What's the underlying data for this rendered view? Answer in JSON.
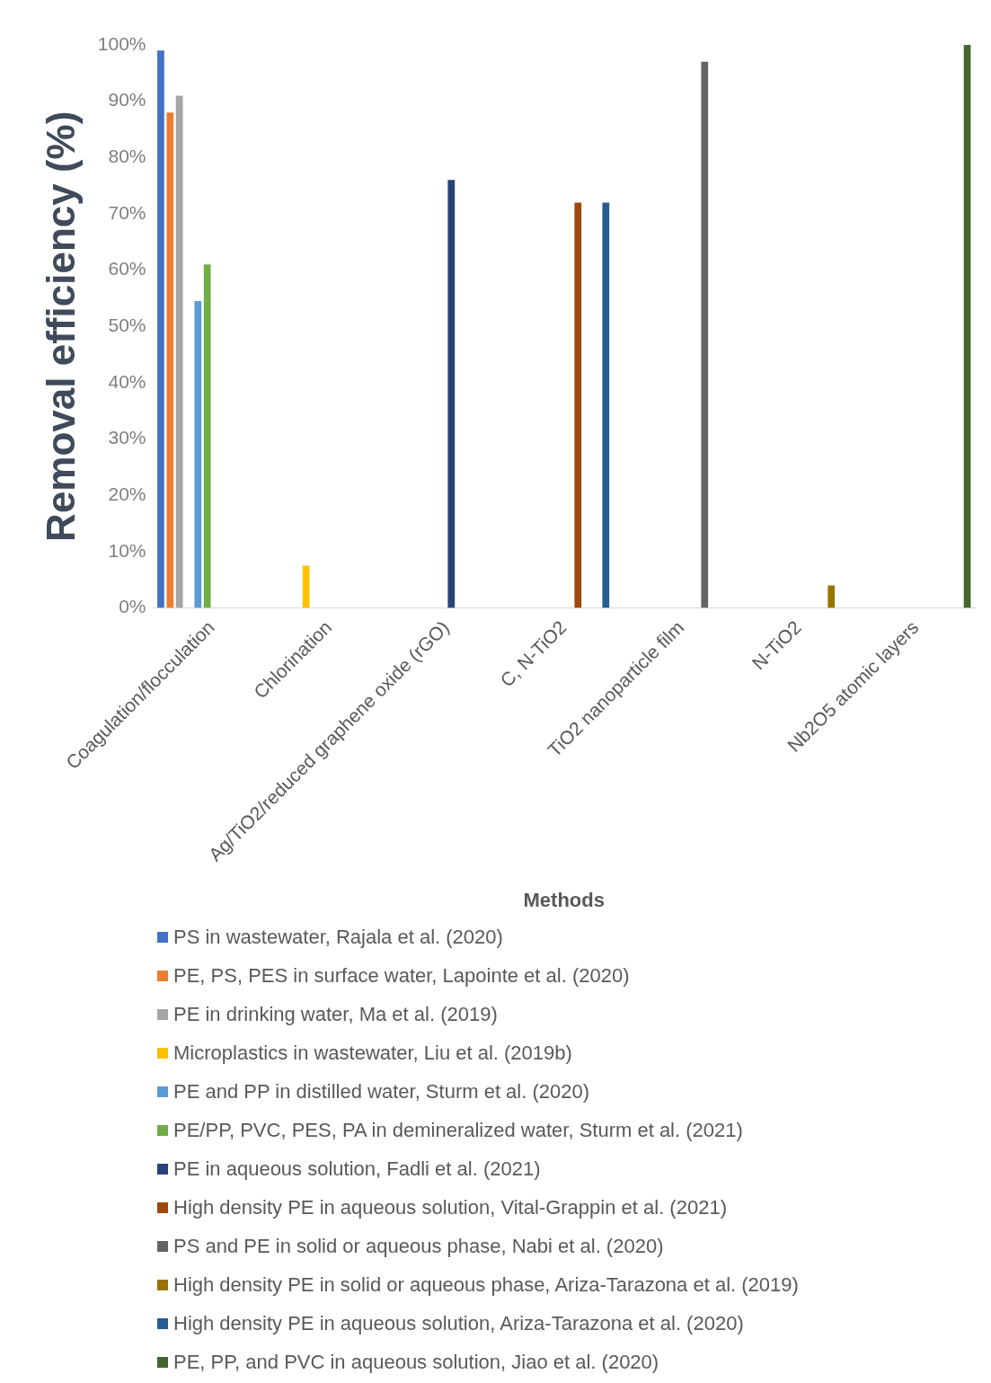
{
  "chart_data": {
    "type": "bar",
    "xlabel": "Methods",
    "ylabel": "Removal efficiency (%)",
    "categories": [
      "Coagulation/flocculation",
      "Chlorination",
      "Ag/TiO2/reduced graphene oxide (rGO)",
      "C, N-TiO2",
      "TiO2 nanoparticle film",
      "N-TiO2",
      "Nb2O5 atomic layers"
    ],
    "ylim": [
      0,
      100
    ],
    "yticks": [
      {
        "value": 0,
        "label": "0%"
      },
      {
        "value": 10,
        "label": "10%"
      },
      {
        "value": 20,
        "label": "20%"
      },
      {
        "value": 30,
        "label": "30%"
      },
      {
        "value": 40,
        "label": "40%"
      },
      {
        "value": 50,
        "label": "50%"
      },
      {
        "value": 60,
        "label": "60%"
      },
      {
        "value": 70,
        "label": "70%"
      },
      {
        "value": 80,
        "label": "80%"
      },
      {
        "value": 90,
        "label": "90%"
      },
      {
        "value": 100,
        "label": "100%"
      }
    ],
    "grid": false,
    "legend": "bottom",
    "series": [
      {
        "name": "PS in wastewater, Rajala et al. (2020)",
        "color": "#4472c4",
        "values": [
          99,
          null,
          null,
          null,
          null,
          null,
          null
        ]
      },
      {
        "name": "PE, PS, PES in surface water, Lapointe et al. (2020)",
        "color": "#ed7d31",
        "values": [
          88,
          null,
          null,
          null,
          null,
          null,
          null
        ]
      },
      {
        "name": "PE in drinking water, Ma et al. (2019)",
        "color": "#a5a5a5",
        "values": [
          91,
          null,
          null,
          null,
          null,
          null,
          null
        ]
      },
      {
        "name": "Microplastics in wastewater, Liu et al. (2019b)",
        "color": "#ffc000",
        "values": [
          null,
          7.5,
          null,
          null,
          null,
          null,
          null
        ]
      },
      {
        "name": "PE and PP in distilled water, Sturm et al. (2020)",
        "color": "#5b9bd5",
        "values": [
          54.5,
          null,
          null,
          null,
          null,
          null,
          null
        ]
      },
      {
        "name": "PE/PP, PVC, PES, PA in demineralized water, Sturm et al. (2021)",
        "color": "#70ad47",
        "values": [
          61,
          null,
          null,
          null,
          null,
          null,
          null
        ]
      },
      {
        "name": "PE in aqueous solution, Fadli et al. (2021)",
        "color": "#264478",
        "values": [
          null,
          null,
          76,
          null,
          null,
          null,
          null
        ]
      },
      {
        "name": "High density PE in aqueous solution, Vital-Grappin et al. (2021)",
        "color": "#9e480e",
        "values": [
          null,
          null,
          null,
          72,
          null,
          null,
          null
        ]
      },
      {
        "name": "PS and PE in solid or aqueous phase, Nabi et al. (2020)",
        "color": "#636363",
        "values": [
          null,
          null,
          null,
          null,
          97,
          null,
          null
        ]
      },
      {
        "name": "High density PE in solid or aqueous phase, Ariza-Tarazona et al. (2019)",
        "color": "#997300",
        "values": [
          null,
          null,
          null,
          null,
          null,
          4,
          null
        ]
      },
      {
        "name": "High density PE in aqueous solution, Ariza-Tarazona et al. (2020)",
        "color": "#255e91",
        "values": [
          null,
          null,
          null,
          72,
          null,
          null,
          null
        ]
      },
      {
        "name": "PE, PP, and PVC in aqueous solution, Jiao et al. (2020)",
        "color": "#43682b",
        "values": [
          null,
          null,
          null,
          null,
          null,
          null,
          100
        ]
      }
    ]
  }
}
